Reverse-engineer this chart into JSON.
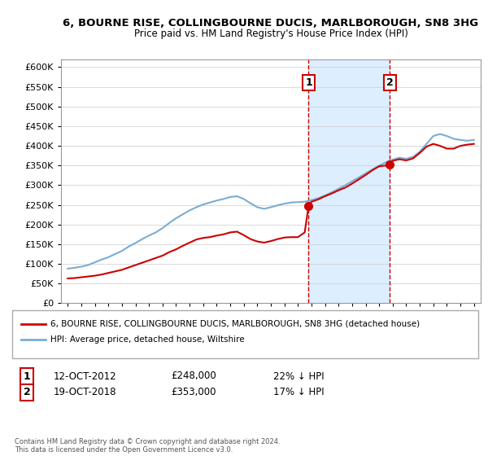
{
  "title1": "6, BOURNE RISE, COLLINGBOURNE DUCIS, MARLBOROUGH, SN8 3HG",
  "title2": "Price paid vs. HM Land Registry's House Price Index (HPI)",
  "legend_red": "6, BOURNE RISE, COLLINGBOURNE DUCIS, MARLBOROUGH, SN8 3HG (detached house)",
  "legend_blue": "HPI: Average price, detached house, Wiltshire",
  "transaction1_label": "1",
  "transaction1_date": "12-OCT-2012",
  "transaction1_price": "£248,000",
  "transaction1_hpi": "22% ↓ HPI",
  "transaction1_year": 2012.79,
  "transaction1_value": 248000,
  "transaction2_label": "2",
  "transaction2_date": "19-OCT-2018",
  "transaction2_price": "£353,000",
  "transaction2_hpi": "17% ↓ HPI",
  "transaction2_year": 2018.79,
  "transaction2_value": 353000,
  "red_color": "#cc0000",
  "blue_color": "#7aadd4",
  "shade_color": "#ddeeff",
  "footnote": "Contains HM Land Registry data © Crown copyright and database right 2024.\nThis data is licensed under the Open Government Licence v3.0.",
  "hpi_years": [
    1995,
    1995.5,
    1996,
    1996.5,
    1997,
    1997.5,
    1998,
    1998.5,
    1999,
    1999.5,
    2000,
    2000.5,
    2001,
    2001.5,
    2002,
    2002.5,
    2003,
    2003.5,
    2004,
    2004.5,
    2005,
    2005.5,
    2006,
    2006.5,
    2007,
    2007.5,
    2008,
    2008.5,
    2009,
    2009.5,
    2010,
    2010.5,
    2011,
    2011.5,
    2012,
    2012.5,
    2013,
    2013.5,
    2014,
    2014.5,
    2015,
    2015.5,
    2016,
    2016.5,
    2017,
    2017.5,
    2018,
    2018.5,
    2019,
    2019.5,
    2020,
    2020.5,
    2021,
    2021.5,
    2022,
    2022.5,
    2023,
    2023.5,
    2024,
    2024.5,
    2025
  ],
  "hpi_values": [
    88000,
    90000,
    93000,
    97000,
    104000,
    111000,
    117000,
    125000,
    133000,
    144000,
    153000,
    163000,
    172000,
    180000,
    191000,
    204000,
    216000,
    226000,
    236000,
    244000,
    251000,
    256000,
    261000,
    265000,
    270000,
    272000,
    265000,
    254000,
    244000,
    240000,
    244000,
    249000,
    253000,
    256000,
    257000,
    258000,
    262000,
    267000,
    274000,
    282000,
    291000,
    300000,
    310000,
    320000,
    330000,
    340000,
    350000,
    358000,
    365000,
    370000,
    367000,
    372000,
    385000,
    405000,
    425000,
    430000,
    425000,
    418000,
    415000,
    413000,
    415000
  ],
  "price_years": [
    1995,
    1995.5,
    1996,
    1996.5,
    1997,
    1997.5,
    1998,
    1998.5,
    1999,
    1999.5,
    2000,
    2000.5,
    2001,
    2001.5,
    2002,
    2002.5,
    2003,
    2003.5,
    2004,
    2004.5,
    2005,
    2005.5,
    2006,
    2006.5,
    2007,
    2007.5,
    2008,
    2008.5,
    2009,
    2009.5,
    2010,
    2010.5,
    2011,
    2011.5,
    2012,
    2012.5,
    2012.79,
    2013,
    2013.5,
    2014,
    2014.5,
    2015,
    2015.5,
    2016,
    2016.5,
    2017,
    2017.5,
    2018,
    2018.5,
    2018.79,
    2019,
    2019.5,
    2020,
    2020.5,
    2021,
    2021.5,
    2022,
    2022.5,
    2023,
    2023.5,
    2024,
    2024.5,
    2025
  ],
  "price_values": [
    63000,
    64000,
    66000,
    68000,
    70000,
    73000,
    77000,
    81000,
    85000,
    91000,
    97000,
    103000,
    109000,
    115000,
    121000,
    130000,
    137000,
    146000,
    154000,
    162000,
    166000,
    168000,
    172000,
    175000,
    180000,
    182000,
    173000,
    163000,
    157000,
    154000,
    158000,
    163000,
    167000,
    168000,
    168000,
    180000,
    248000,
    258000,
    264000,
    272000,
    279000,
    287000,
    294000,
    304000,
    315000,
    326000,
    338000,
    348000,
    350000,
    353000,
    362000,
    366000,
    363000,
    368000,
    382000,
    398000,
    405000,
    400000,
    393000,
    393000,
    400000,
    403000,
    405000
  ],
  "ylim_min": 0,
  "ylim_max": 620000,
  "xlim_min": 1994.5,
  "xlim_max": 2025.5,
  "bg_color": "#f0f0f0"
}
